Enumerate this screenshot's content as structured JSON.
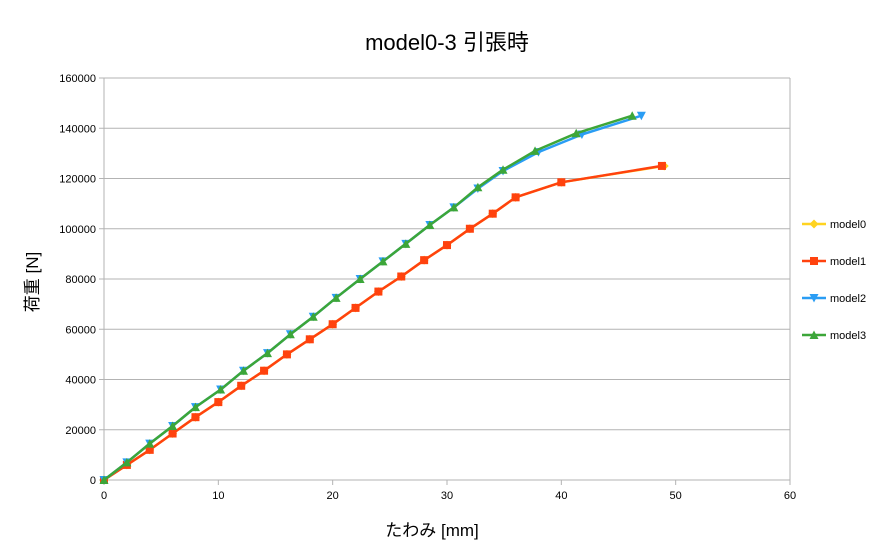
{
  "chart_data": {
    "type": "line",
    "title": "model0-3 引張時",
    "xlabel": "たわみ [mm]",
    "ylabel": "荷重 [N]",
    "xlim": [
      0,
      60
    ],
    "ylim": [
      0,
      160000
    ],
    "x_ticks": [
      0,
      10,
      20,
      30,
      40,
      50,
      60
    ],
    "y_ticks": [
      0,
      20000,
      40000,
      60000,
      80000,
      100000,
      120000,
      140000,
      160000
    ],
    "grid": "horizontal",
    "legend": "right",
    "series": [
      {
        "name": "model0",
        "color": "#ffd320",
        "marker": "diamond",
        "x": [
          0,
          2,
          4,
          6,
          8,
          10,
          12,
          14,
          16,
          18,
          20,
          22,
          24,
          26,
          28,
          30,
          32,
          34,
          36,
          40,
          49
        ],
        "y": [
          0,
          6000,
          12000,
          18500,
          25000,
          31000,
          37500,
          43500,
          50000,
          56000,
          62000,
          68500,
          75000,
          81000,
          87500,
          93500,
          100000,
          106000,
          112500,
          118500,
          125000
        ]
      },
      {
        "name": "model1",
        "color": "#ff420e",
        "marker": "square",
        "x": [
          0,
          2,
          4,
          6,
          8,
          10,
          12,
          14,
          16,
          18,
          20,
          22,
          24,
          26,
          28,
          30,
          32,
          34,
          36,
          40,
          48.8
        ],
        "y": [
          0,
          6000,
          12000,
          18500,
          25000,
          31000,
          37500,
          43500,
          50000,
          56000,
          62000,
          68500,
          75000,
          81000,
          87500,
          93500,
          100000,
          106000,
          112500,
          118500,
          125000
        ]
      },
      {
        "name": "model2",
        "color": "#2a9df4",
        "marker": "triangle-down",
        "x": [
          0,
          2,
          4,
          6,
          8,
          10.2,
          12.2,
          14.3,
          16.3,
          18.3,
          20.3,
          22.4,
          24.4,
          26.4,
          28.5,
          30.6,
          32.7,
          34.9,
          38,
          41.8,
          47
        ],
        "y": [
          0,
          7000,
          14500,
          21500,
          29000,
          36000,
          43500,
          50500,
          58000,
          65000,
          72500,
          80000,
          87000,
          94000,
          101500,
          108500,
          116000,
          123000,
          130500,
          137500,
          145000
        ]
      },
      {
        "name": "model3",
        "color": "#3ca639",
        "marker": "triangle-up",
        "x": [
          0,
          2,
          4,
          6,
          8,
          10.2,
          12.2,
          14.3,
          16.3,
          18.3,
          20.3,
          22.4,
          24.4,
          26.4,
          28.5,
          30.6,
          32.7,
          34.9,
          37.7,
          41.3,
          46.2
        ],
        "y": [
          0,
          7000,
          14500,
          21500,
          29000,
          36000,
          43500,
          50500,
          58000,
          65000,
          72500,
          80000,
          87000,
          94000,
          101500,
          108500,
          116500,
          123500,
          131000,
          138000,
          145000
        ]
      }
    ]
  }
}
